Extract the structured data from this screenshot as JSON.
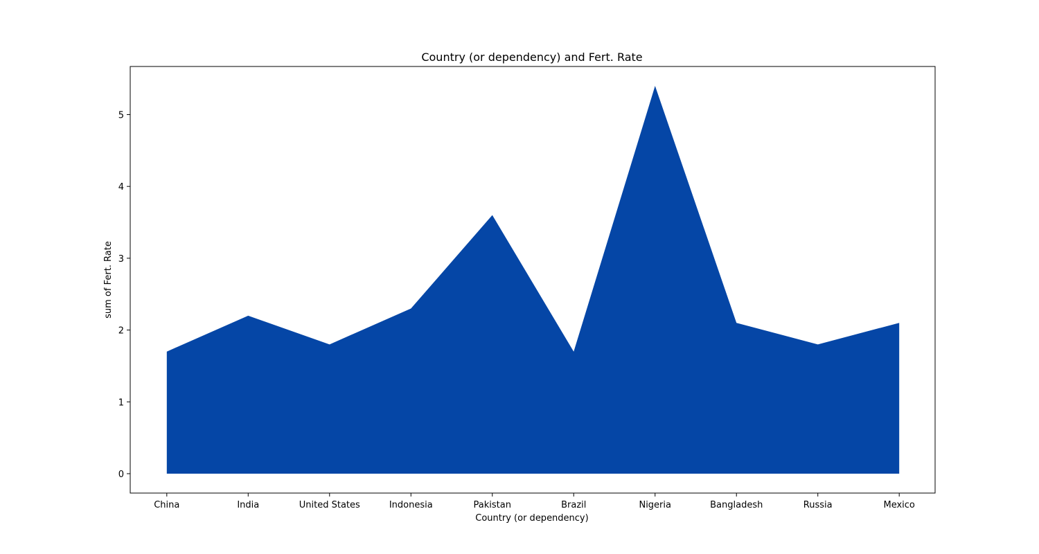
{
  "chart_data": {
    "type": "area",
    "title": "Country (or dependency) and Fert. Rate",
    "xlabel": "Country (or dependency)",
    "ylabel": "sum of Fert. Rate",
    "categories": [
      "China",
      "India",
      "United States",
      "Indonesia",
      "Pakistan",
      "Brazil",
      "Nigeria",
      "Bangladesh",
      "Russia",
      "Mexico"
    ],
    "series": [
      {
        "values": [
          1.7,
          2.2,
          1.8,
          2.3,
          3.6,
          1.7,
          5.4,
          2.1,
          1.8,
          2.1
        ],
        "color": "#0546a6"
      }
    ],
    "yticks": [
      0,
      1,
      2,
      3,
      4,
      5
    ],
    "ylim": [
      -0.27,
      5.67
    ],
    "grid": false,
    "legend": "none"
  }
}
